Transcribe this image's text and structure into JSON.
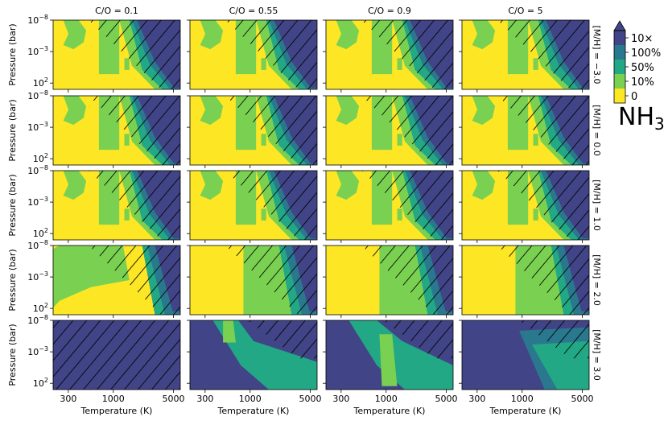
{
  "species": {
    "base": "NH",
    "sub": "3"
  },
  "colorbar": {
    "ticks": [
      "10×",
      "100%",
      "50%",
      "10%",
      "0"
    ],
    "colors": [
      "#fde725",
      "#7ad151",
      "#22a884",
      "#2a788e",
      "#414487"
    ]
  },
  "chart_data": {
    "type": "heatmap",
    "columns": [
      "C/O = 0.1",
      "C/O = 0.55",
      "C/O = 0.9",
      "C/O = 5"
    ],
    "rows": [
      "[M/H] = −3.0",
      "[M/H] = 0.0",
      "[M/H] = 1.0",
      "[M/H] = 2.0",
      "[M/H] = 3.0"
    ],
    "xlabel": "Temperature (K)",
    "ylabel": "Pressure (bar)",
    "x_ticks": [
      "300",
      "1000",
      "5000"
    ],
    "y_ticks": [
      "10−8",
      "10−3",
      "102"
    ],
    "xscale": "log",
    "yscale": "log",
    "xlim": [
      200,
      6000
    ],
    "ylim": [
      1e-08,
      1000
    ],
    "levels": [
      "0",
      "10%",
      "50%",
      "100%",
      "10×"
    ]
  }
}
